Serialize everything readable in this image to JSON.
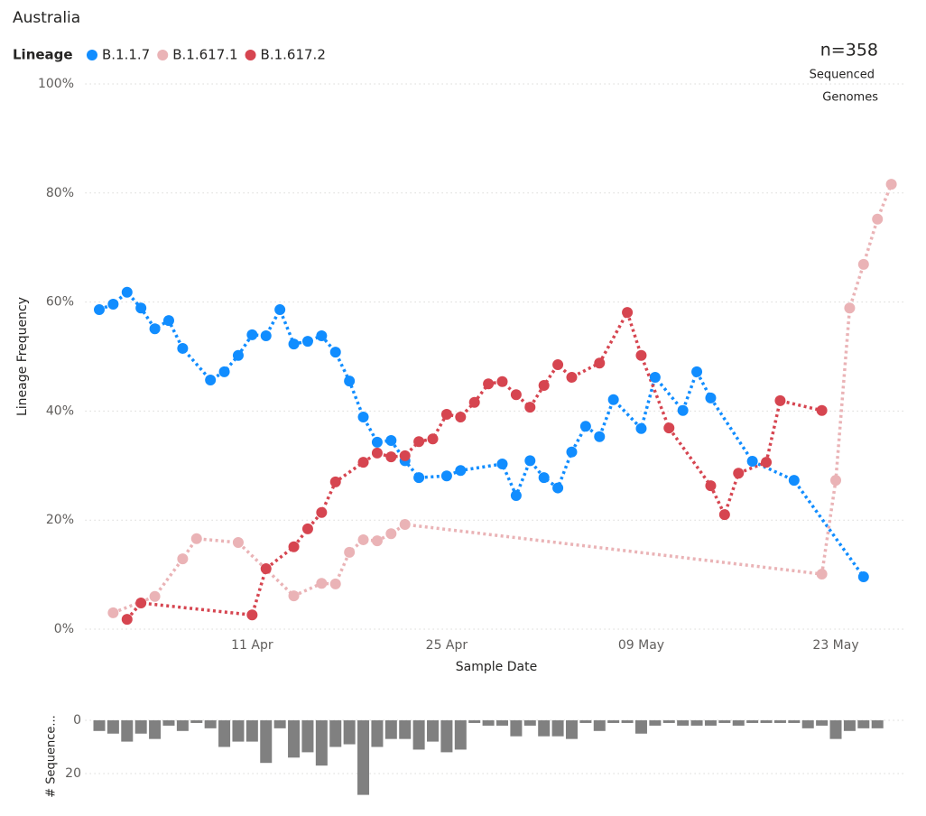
{
  "chart_data": [
    {
      "type": "line",
      "title": "Australia",
      "legend_title": "Lineage",
      "annotations": [
        "n=358",
        "Sequenced",
        "Genomes"
      ],
      "x_label": "Sample Date",
      "y_label": "Lineage Frequency",
      "xlim": [
        "30 Mar",
        "28 May"
      ],
      "xticks": [
        "11 Apr",
        "25 Apr",
        "09 May",
        "23 May"
      ],
      "ylim": [
        0,
        100
      ],
      "yticks": [
        {
          "value": 0,
          "label": "0%"
        },
        {
          "value": 20,
          "label": "20%"
        },
        {
          "value": 40,
          "label": "40%"
        },
        {
          "value": 60,
          "label": "60%"
        },
        {
          "value": 80,
          "label": "80%"
        },
        {
          "value": 100,
          "label": "100%"
        }
      ],
      "grid": true,
      "series": [
        {
          "name": "B.1.1.7",
          "color": "#118DFF",
          "x": [
            "31 Mar",
            "01 Apr",
            "02 Apr",
            "03 Apr",
            "04 Apr",
            "05 Apr",
            "06 Apr",
            "08 Apr",
            "09 Apr",
            "10 Apr",
            "11 Apr",
            "12 Apr",
            "13 Apr",
            "14 Apr",
            "15 Apr",
            "16 Apr",
            "17 Apr",
            "18 Apr",
            "19 Apr",
            "20 Apr",
            "21 Apr",
            "22 Apr",
            "23 Apr",
            "25 Apr",
            "26 Apr",
            "29 Apr",
            "30 Apr",
            "01 May",
            "02 May",
            "03 May",
            "04 May",
            "05 May",
            "06 May",
            "07 May",
            "09 May",
            "10 May",
            "12 May",
            "13 May",
            "14 May",
            "17 May",
            "20 May",
            "25 May"
          ],
          "values": [
            58.6,
            59.6,
            61.8,
            58.9,
            55.1,
            56.6,
            51.5,
            45.7,
            47.2,
            50.2,
            54.0,
            53.8,
            58.6,
            52.3,
            52.8,
            53.8,
            50.8,
            45.5,
            38.9,
            34.3,
            34.6,
            30.9,
            27.8,
            28.1,
            29.1,
            30.3,
            24.5,
            30.9,
            27.8,
            25.9,
            32.5,
            37.2,
            35.3,
            42.1,
            36.8,
            46.2,
            40.1,
            47.2,
            42.4,
            30.8,
            27.3,
            9.6
          ]
        },
        {
          "name": "B.1.617.1",
          "color": "#EAB3B6",
          "x": [
            "01 Apr",
            "04 Apr",
            "06 Apr",
            "07 Apr",
            "10 Apr",
            "14 Apr",
            "16 Apr",
            "17 Apr",
            "18 Apr",
            "19 Apr",
            "20 Apr",
            "21 Apr",
            "22 Apr",
            "22 May",
            "23 May",
            "24 May",
            "25 May",
            "26 May",
            "27 May"
          ],
          "values": [
            3.0,
            6.0,
            12.9,
            16.6,
            15.9,
            6.1,
            8.4,
            8.3,
            14.1,
            16.4,
            16.2,
            17.5,
            19.2,
            10.1,
            27.3,
            58.9,
            66.9,
            75.2,
            81.6
          ]
        },
        {
          "name": "B.1.617.2",
          "color": "#D64550",
          "x": [
            "02 Apr",
            "03 Apr",
            "11 Apr",
            "12 Apr",
            "14 Apr",
            "15 Apr",
            "16 Apr",
            "17 Apr",
            "19 Apr",
            "20 Apr",
            "21 Apr",
            "22 Apr",
            "23 Apr",
            "24 Apr",
            "25 Apr",
            "26 Apr",
            "27 Apr",
            "28 Apr",
            "29 Apr",
            "30 Apr",
            "01 May",
            "02 May",
            "03 May",
            "04 May",
            "06 May",
            "08 May",
            "09 May",
            "11 May",
            "14 May",
            "15 May",
            "16 May",
            "18 May",
            "19 May",
            "22 May"
          ],
          "values": [
            1.8,
            4.8,
            2.6,
            11.1,
            15.1,
            18.4,
            21.4,
            27.0,
            30.6,
            32.3,
            31.6,
            31.8,
            34.4,
            34.9,
            39.4,
            38.9,
            41.6,
            45.0,
            45.4,
            43.0,
            40.7,
            44.7,
            48.5,
            46.2,
            48.8,
            58.1,
            50.2,
            36.9,
            26.3,
            21.0,
            28.6,
            30.6,
            41.9,
            40.1
          ]
        }
      ]
    },
    {
      "type": "bar",
      "y_label": "# Sequence...",
      "color": "#808080",
      "inverted": true,
      "xlim": [
        "30 Mar",
        "28 May"
      ],
      "ylim": [
        0,
        28
      ],
      "yticks": [
        0,
        20
      ],
      "grid": true,
      "x": [
        "31 Mar",
        "01 Apr",
        "02 Apr",
        "03 Apr",
        "04 Apr",
        "05 Apr",
        "06 Apr",
        "07 Apr",
        "08 Apr",
        "09 Apr",
        "10 Apr",
        "11 Apr",
        "12 Apr",
        "13 Apr",
        "14 Apr",
        "15 Apr",
        "16 Apr",
        "17 Apr",
        "18 Apr",
        "19 Apr",
        "20 Apr",
        "21 Apr",
        "22 Apr",
        "23 Apr",
        "24 Apr",
        "25 Apr",
        "26 Apr",
        "27 Apr",
        "28 Apr",
        "29 Apr",
        "30 Apr",
        "01 May",
        "02 May",
        "03 May",
        "04 May",
        "05 May",
        "06 May",
        "07 May",
        "08 May",
        "09 May",
        "10 May",
        "11 May",
        "12 May",
        "13 May",
        "14 May",
        "15 May",
        "16 May",
        "17 May",
        "18 May",
        "19 May",
        "20 May",
        "21 May",
        "22 May",
        "23 May",
        "24 May",
        "25 May",
        "26 May"
      ],
      "values": [
        4,
        5,
        8,
        5,
        7,
        2,
        4,
        1,
        3,
        10,
        8,
        8,
        16,
        3,
        14,
        12,
        17,
        10,
        9,
        28,
        10,
        7,
        7,
        11,
        8,
        12,
        11,
        1,
        2,
        2,
        6,
        2,
        6,
        6,
        7,
        1,
        4,
        1,
        1,
        5,
        2,
        1,
        2,
        2,
        2,
        1,
        2,
        1,
        1,
        1,
        1,
        3,
        2,
        7,
        4,
        3,
        3
      ]
    }
  ]
}
